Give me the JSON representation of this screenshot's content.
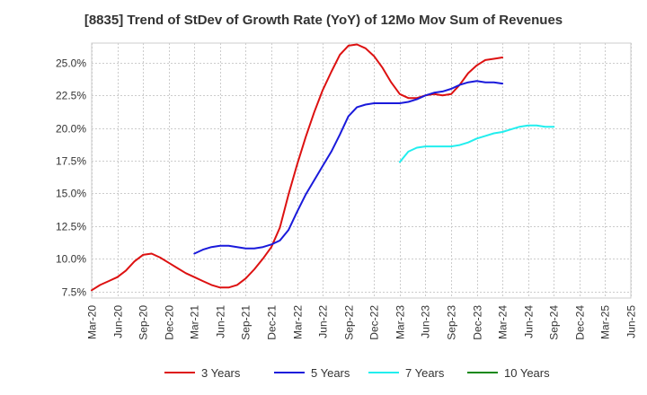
{
  "chart_data": {
    "type": "line",
    "title": "[8835]  Trend of StDev of Growth Rate (YoY) of 12Mo Mov Sum of Revenues",
    "xlabel": "",
    "ylabel": "",
    "ylim": [
      7.0,
      26.5
    ],
    "y_ticks": [
      7.5,
      10.0,
      12.5,
      15.0,
      17.5,
      20.0,
      22.5,
      25.0
    ],
    "y_tick_labels": [
      "7.5%",
      "10.0%",
      "12.5%",
      "15.0%",
      "17.5%",
      "20.0%",
      "22.5%",
      "25.0%"
    ],
    "x_tick_labels": [
      "Mar-20",
      "Jun-20",
      "Sep-20",
      "Dec-20",
      "Mar-21",
      "Jun-21",
      "Sep-21",
      "Dec-21",
      "Mar-22",
      "Jun-22",
      "Sep-22",
      "Dec-22",
      "Mar-23",
      "Jun-23",
      "Sep-23",
      "Dec-23",
      "Mar-24",
      "Jun-24",
      "Sep-24",
      "Dec-24",
      "Mar-25",
      "Jun-25"
    ],
    "grid": true,
    "legend_position": "bottom",
    "series": [
      {
        "name": "3 Years",
        "color": "#dd1111",
        "start_index": 0,
        "values": [
          7.6,
          8.0,
          8.3,
          8.6,
          9.1,
          9.8,
          10.3,
          10.4,
          10.1,
          9.7,
          9.3,
          8.9,
          8.6,
          8.3,
          8.0,
          7.8,
          7.8,
          8.0,
          8.5,
          9.2,
          10.0,
          10.9,
          12.4,
          14.9,
          17.2,
          19.3,
          21.2,
          22.9,
          24.3,
          25.6,
          26.3,
          26.4,
          26.1,
          25.5,
          24.6,
          23.5,
          22.6,
          22.3,
          22.3,
          22.5,
          22.6,
          22.5,
          22.6,
          23.3,
          24.2,
          24.8,
          25.2,
          25.3,
          25.4
        ]
      },
      {
        "name": "5 Years",
        "color": "#1a1adb",
        "start_index": 12,
        "values": [
          10.4,
          10.7,
          10.9,
          11.0,
          11.0,
          10.9,
          10.8,
          10.8,
          10.9,
          11.1,
          11.4,
          12.2,
          13.6,
          14.9,
          16.0,
          17.1,
          18.2,
          19.5,
          20.9,
          21.6,
          21.8,
          21.9,
          21.9,
          21.9,
          21.9,
          22.0,
          22.2,
          22.5,
          22.7,
          22.8,
          23.0,
          23.3,
          23.5,
          23.6,
          23.5,
          23.5,
          23.4
        ]
      },
      {
        "name": "7 Years",
        "color": "#22eeee",
        "start_index": 36,
        "values": [
          17.4,
          18.2,
          18.5,
          18.6,
          18.6,
          18.6,
          18.6,
          18.7,
          18.9,
          19.2,
          19.4,
          19.6,
          19.7,
          19.9,
          20.1,
          20.2,
          20.2,
          20.1,
          20.1
        ]
      },
      {
        "name": "10 Years",
        "color": "#118811",
        "start_index": 0,
        "values": []
      }
    ]
  }
}
